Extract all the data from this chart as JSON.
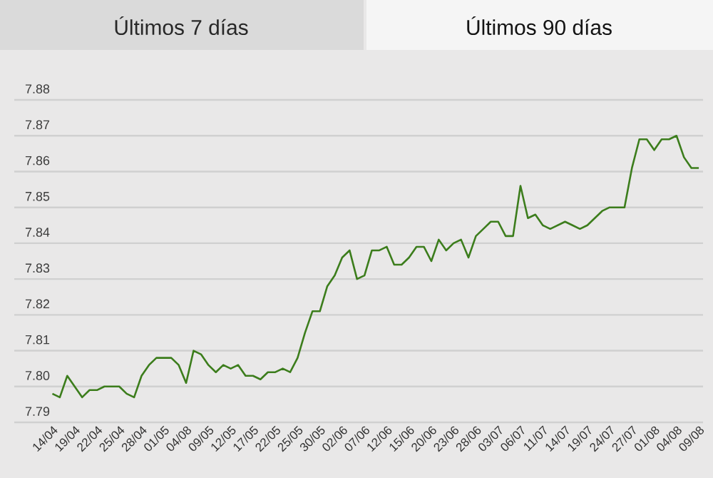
{
  "chart_data": {
    "type": "line",
    "annotations": [
      "Últimos 7 días",
      "Últimos 90 días"
    ],
    "categories": [
      "14/04",
      null,
      null,
      "19/04",
      null,
      null,
      "22/04",
      null,
      null,
      "25/04",
      null,
      null,
      "28/04",
      null,
      null,
      "01/05",
      null,
      null,
      "04/08",
      null,
      null,
      "09/05",
      null,
      null,
      "12/05",
      null,
      null,
      "17/05",
      null,
      null,
      "22/05",
      null,
      null,
      "25/05",
      null,
      null,
      "30/05",
      null,
      null,
      "02/06",
      null,
      null,
      "07/06",
      null,
      null,
      "12/06",
      null,
      null,
      "15/06",
      null,
      null,
      "20/06",
      null,
      null,
      "23/06",
      null,
      null,
      "28/06",
      null,
      null,
      "03/07",
      null,
      null,
      "06/07",
      null,
      null,
      "11/07",
      null,
      null,
      "14/07",
      null,
      null,
      "19/07",
      null,
      null,
      "24/07",
      null,
      null,
      "27/07",
      null,
      null,
      "01/08",
      null,
      null,
      "04/08",
      null,
      null,
      "09/08"
    ],
    "series": [
      {
        "color": "#3c7d1c",
        "values": [
          7.798,
          7.797,
          7.803,
          7.8,
          7.797,
          7.799,
          7.799,
          7.8,
          7.8,
          7.8,
          7.798,
          7.797,
          7.803,
          7.806,
          7.808,
          7.808,
          7.808,
          7.806,
          7.801,
          7.81,
          7.809,
          7.806,
          7.804,
          7.806,
          7.805,
          7.806,
          7.803,
          7.803,
          7.802,
          7.804,
          7.804,
          7.805,
          7.804,
          7.808,
          7.815,
          7.821,
          7.821,
          7.828,
          7.831,
          7.836,
          7.838,
          7.83,
          7.831,
          7.838,
          7.838,
          7.839,
          7.834,
          7.834,
          7.836,
          7.839,
          7.839,
          7.835,
          7.841,
          7.838,
          7.84,
          7.841,
          7.836,
          7.842,
          7.844,
          7.846,
          7.846,
          7.842,
          7.842,
          7.856,
          7.847,
          7.848,
          7.845,
          7.844,
          7.845,
          7.846,
          7.845,
          7.844,
          7.845,
          7.847,
          7.849,
          7.85,
          7.85,
          7.85,
          7.861,
          7.869,
          7.869,
          7.866,
          7.869,
          7.869,
          7.87,
          7.864,
          7.861,
          7.861
        ]
      }
    ],
    "ylim": [
      7.79,
      7.88
    ],
    "yticks": [
      7.79,
      {
        "value": 7.8,
        "label": "7.80"
      },
      7.81,
      7.82,
      7.83,
      7.84,
      7.85,
      7.86,
      7.87,
      7.88
    ],
    "grid": "y",
    "line_style": "solid"
  }
}
